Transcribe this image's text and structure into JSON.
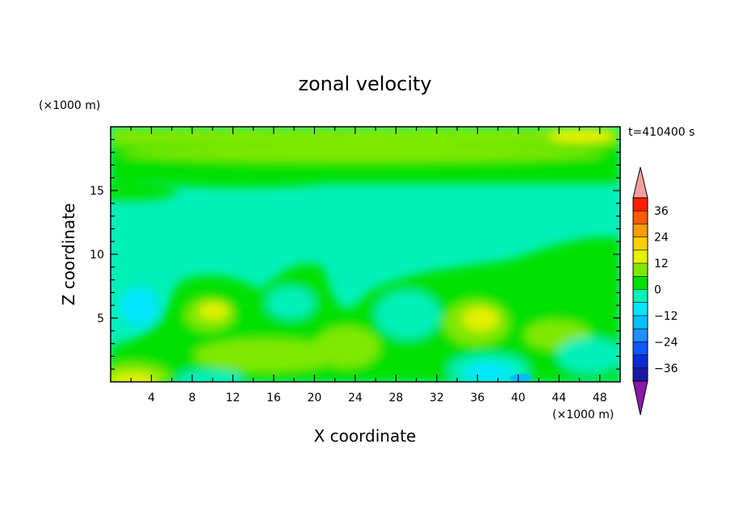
{
  "chart_data": {
    "type": "heatmap",
    "title": "zonal velocity",
    "xlabel": "X coordinate",
    "ylabel": "Z coordinate",
    "x_unit": "(×1000 m)",
    "y_unit": "(×1000 m)",
    "time_label": "t=410400 s",
    "xlim": [
      0,
      50
    ],
    "ylim": [
      0,
      20
    ],
    "x_ticks": [
      4,
      8,
      12,
      16,
      20,
      24,
      28,
      32,
      36,
      40,
      44,
      48
    ],
    "y_ticks": [
      5,
      10,
      15
    ],
    "colorbar": {
      "levels": [
        -42,
        -36,
        -30,
        -24,
        -18,
        -12,
        -6,
        0,
        6,
        12,
        18,
        24,
        30,
        36,
        42
      ],
      "labels": [
        -36,
        -24,
        -12,
        0,
        12,
        24,
        36
      ],
      "colors": [
        "#4b0082",
        "#1a1aa8",
        "#0a2ad8",
        "#0f57ff",
        "#1e90ff",
        "#00bfff",
        "#00e5ff",
        "#00f0b8",
        "#00e000",
        "#80e800",
        "#e8f000",
        "#ffd000",
        "#ff9a00",
        "#ff5a00",
        "#ff2000",
        "#e00000"
      ],
      "under_color": "#8b1aa8",
      "over_color": "#f4a0a0",
      "extend": "both"
    },
    "grid": false,
    "legend": "colorbar-right"
  }
}
